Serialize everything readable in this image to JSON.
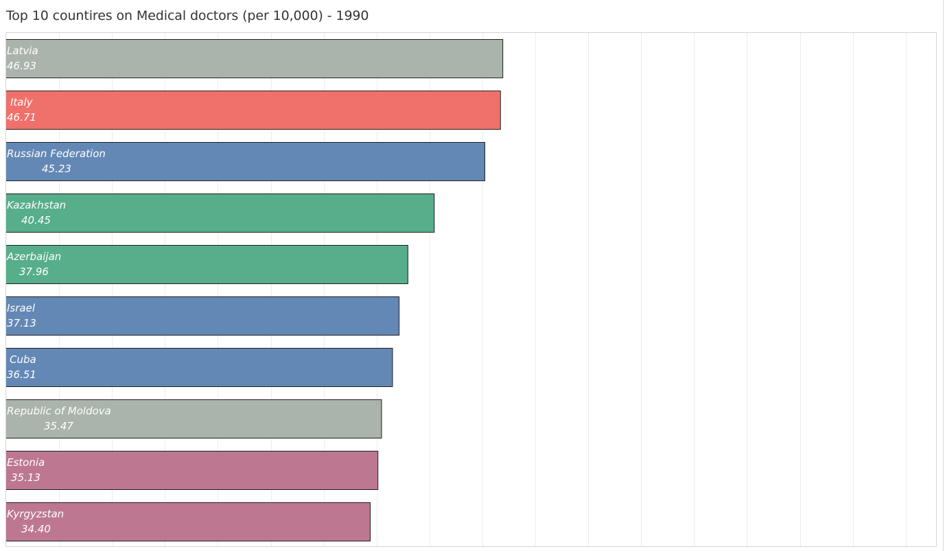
{
  "title": "Top 10 countires on Medical doctors (per 10,000) - 1990",
  "chart_data": {
    "type": "bar",
    "orientation": "horizontal",
    "title": "Top 10 countires on Medical doctors (per 10,000) - 1990",
    "xlabel": "",
    "ylabel": "",
    "xlim": [
      0,
      88
    ],
    "grid": true,
    "categories": [
      "Latvia",
      "Italy",
      "Russian Federation",
      "Kazakhstan",
      "Azerbaijan",
      "Israel",
      "Cuba",
      "Republic of Moldova",
      "Estonia",
      "Kyrgyzstan"
    ],
    "values": [
      46.93,
      46.71,
      45.23,
      40.45,
      37.96,
      37.13,
      36.51,
      35.47,
      35.13,
      34.4
    ],
    "value_labels": [
      "46.93",
      "46.71",
      "45.23",
      "40.45",
      "37.96",
      "37.13",
      "36.51",
      "35.47",
      "35.13",
      "34.40"
    ],
    "colors": [
      "#abb3ad",
      "#f0716b",
      "#6488b5",
      "#57ae8a",
      "#57ae8a",
      "#6488b5",
      "#6488b5",
      "#abb3ad",
      "#bd7791",
      "#bd7791"
    ]
  }
}
